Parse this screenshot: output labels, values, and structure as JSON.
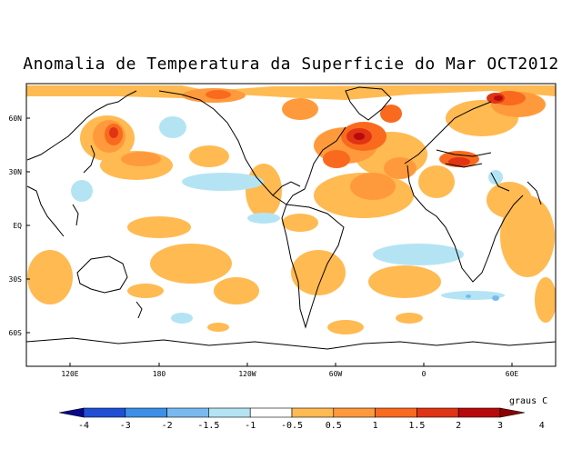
{
  "title": "Anomalia de Temperatura da Superficie do Mar OCT2012",
  "units_label": "graus C",
  "lat_labels": [
    "60N",
    "30N",
    "EQ",
    "30S",
    "60S"
  ],
  "lon_labels": [
    "120E",
    "180",
    "120W",
    "60W",
    "0",
    "60E"
  ],
  "colorbar": {
    "tick_labels": [
      "-4",
      "-3",
      "-2",
      "-1.5",
      "-1",
      "-0.5",
      "0.5",
      "1",
      "1.5",
      "2",
      "3",
      "4"
    ],
    "colors": [
      "#08088c",
      "#1f4fd6",
      "#3d8fe8",
      "#78baf0",
      "#b4e4f4",
      "#ffffff",
      "#ffba52",
      "#ff9a3c",
      "#fa6a1e",
      "#e03414",
      "#b80a0a",
      "#8c0000"
    ]
  },
  "palette": {
    "coast": "#000000",
    "warm_light": "#ffba52",
    "warm_mid": "#ff9a3c",
    "warm_strong": "#fa6a1e",
    "warm_hot": "#e03414",
    "warm_extreme": "#b80a0a",
    "cool_light": "#b4e4f4",
    "cool_mid": "#78baf0"
  }
}
